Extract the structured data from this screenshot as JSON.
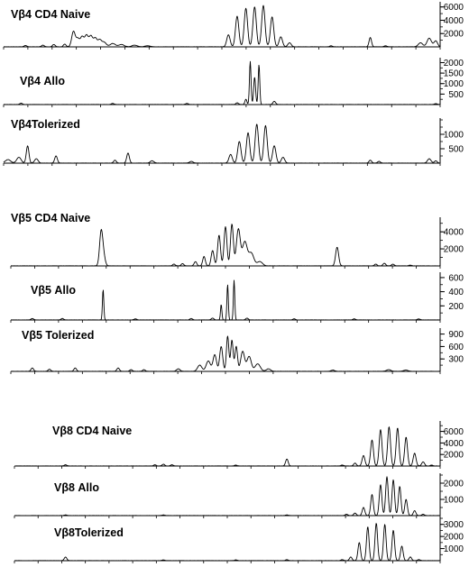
{
  "chart_data": [
    {
      "type": "line",
      "title": "Vβ4 CD4 Naive",
      "yticks": [
        2000,
        4000,
        6000
      ],
      "ylim": [
        0,
        6500
      ],
      "grid": false,
      "peaks": [
        {
          "x": 0.2,
          "y": 1600,
          "w": 0.004
        },
        {
          "x": 0.18,
          "y": 1500,
          "w": 0.004
        },
        {
          "x": 0.19,
          "y": 1700,
          "w": 0.004
        },
        {
          "x": 0.17,
          "y": 1200,
          "w": 0.004
        },
        {
          "x": 0.16,
          "y": 2300,
          "w": 0.004
        },
        {
          "x": 0.21,
          "y": 1300,
          "w": 0.004
        },
        {
          "x": 0.22,
          "y": 1000,
          "w": 0.004
        },
        {
          "x": 0.23,
          "y": 700,
          "w": 0.005
        },
        {
          "x": 0.25,
          "y": 500,
          "w": 0.006
        },
        {
          "x": 0.27,
          "y": 350,
          "w": 0.006
        },
        {
          "x": 0.3,
          "y": 250,
          "w": 0.006
        },
        {
          "x": 0.33,
          "y": 150,
          "w": 0.006
        },
        {
          "x": 0.05,
          "y": 200,
          "w": 0.003
        },
        {
          "x": 0.09,
          "y": 250,
          "w": 0.003
        },
        {
          "x": 0.115,
          "y": 350,
          "w": 0.003
        },
        {
          "x": 0.14,
          "y": 400,
          "w": 0.003
        },
        {
          "x": 0.515,
          "y": 1800,
          "w": 0.0038
        },
        {
          "x": 0.535,
          "y": 4600,
          "w": 0.0038
        },
        {
          "x": 0.555,
          "y": 5800,
          "w": 0.0038
        },
        {
          "x": 0.575,
          "y": 6000,
          "w": 0.0038
        },
        {
          "x": 0.595,
          "y": 6200,
          "w": 0.0038
        },
        {
          "x": 0.615,
          "y": 4500,
          "w": 0.0038
        },
        {
          "x": 0.635,
          "y": 1500,
          "w": 0.0038
        },
        {
          "x": 0.655,
          "y": 600,
          "w": 0.0038
        },
        {
          "x": 0.75,
          "y": 150,
          "w": 0.003
        },
        {
          "x": 0.84,
          "y": 1400,
          "w": 0.0028
        },
        {
          "x": 0.875,
          "y": 150,
          "w": 0.003
        },
        {
          "x": 0.955,
          "y": 600,
          "w": 0.005
        },
        {
          "x": 0.975,
          "y": 1300,
          "w": 0.005
        },
        {
          "x": 0.99,
          "y": 900,
          "w": 0.004
        }
      ]
    },
    {
      "type": "line",
      "title": "Vβ4 Allo",
      "yticks": [
        500,
        1000,
        1500,
        2000
      ],
      "ylim": [
        0,
        2150
      ],
      "grid": false,
      "peaks": [
        {
          "x": 0.04,
          "y": 60,
          "w": 0.003
        },
        {
          "x": 0.25,
          "y": 50,
          "w": 0.003
        },
        {
          "x": 0.42,
          "y": 50,
          "w": 0.003
        },
        {
          "x": 0.535,
          "y": 80,
          "w": 0.003
        },
        {
          "x": 0.555,
          "y": 250,
          "w": 0.0022
        },
        {
          "x": 0.575,
          "y": 1300,
          "w": 0.0022
        },
        {
          "x": 0.565,
          "y": 2050,
          "w": 0.0018
        },
        {
          "x": 0.585,
          "y": 1900,
          "w": 0.0018
        },
        {
          "x": 0.62,
          "y": 150,
          "w": 0.003
        },
        {
          "x": 0.99,
          "y": 40,
          "w": 0.003
        }
      ]
    },
    {
      "type": "line",
      "title": "Vβ4Tolerized",
      "yticks": [
        500,
        1000
      ],
      "ylim": [
        0,
        1500
      ],
      "grid": false,
      "peaks": [
        {
          "x": 0.01,
          "y": 120,
          "w": 0.006
        },
        {
          "x": 0.035,
          "y": 200,
          "w": 0.005
        },
        {
          "x": 0.055,
          "y": 600,
          "w": 0.003
        },
        {
          "x": 0.075,
          "y": 150,
          "w": 0.004
        },
        {
          "x": 0.12,
          "y": 250,
          "w": 0.003
        },
        {
          "x": 0.255,
          "y": 100,
          "w": 0.003
        },
        {
          "x": 0.285,
          "y": 350,
          "w": 0.003
        },
        {
          "x": 0.34,
          "y": 80,
          "w": 0.004
        },
        {
          "x": 0.43,
          "y": 60,
          "w": 0.004
        },
        {
          "x": 0.52,
          "y": 300,
          "w": 0.0038
        },
        {
          "x": 0.54,
          "y": 750,
          "w": 0.0038
        },
        {
          "x": 0.56,
          "y": 1050,
          "w": 0.0038
        },
        {
          "x": 0.58,
          "y": 1350,
          "w": 0.0038
        },
        {
          "x": 0.6,
          "y": 1300,
          "w": 0.0038
        },
        {
          "x": 0.62,
          "y": 600,
          "w": 0.0038
        },
        {
          "x": 0.64,
          "y": 200,
          "w": 0.0038
        },
        {
          "x": 0.84,
          "y": 100,
          "w": 0.003
        },
        {
          "x": 0.86,
          "y": 60,
          "w": 0.003
        },
        {
          "x": 0.975,
          "y": 150,
          "w": 0.004
        },
        {
          "x": 0.99,
          "y": 80,
          "w": 0.003
        }
      ]
    },
    {
      "type": "line",
      "title": "Vβ5 CD4 Naive",
      "yticks": [
        2000,
        4000
      ],
      "ylim": [
        0,
        5500
      ],
      "grid": false,
      "peaks": [
        {
          "x": 0.21,
          "y": 3500,
          "w": 0.0035
        },
        {
          "x": 0.215,
          "y": 1500,
          "w": 0.004
        },
        {
          "x": 0.38,
          "y": 200,
          "w": 0.003
        },
        {
          "x": 0.4,
          "y": 250,
          "w": 0.003
        },
        {
          "x": 0.43,
          "y": 500,
          "w": 0.003
        },
        {
          "x": 0.45,
          "y": 1100,
          "w": 0.003
        },
        {
          "x": 0.47,
          "y": 1800,
          "w": 0.0033
        },
        {
          "x": 0.485,
          "y": 3600,
          "w": 0.0033
        },
        {
          "x": 0.5,
          "y": 4600,
          "w": 0.0033
        },
        {
          "x": 0.515,
          "y": 4900,
          "w": 0.0033
        },
        {
          "x": 0.53,
          "y": 4300,
          "w": 0.0045
        },
        {
          "x": 0.545,
          "y": 2800,
          "w": 0.0055
        },
        {
          "x": 0.56,
          "y": 1500,
          "w": 0.006
        },
        {
          "x": 0.58,
          "y": 500,
          "w": 0.006
        },
        {
          "x": 0.76,
          "y": 2200,
          "w": 0.0035
        },
        {
          "x": 0.85,
          "y": 200,
          "w": 0.003
        },
        {
          "x": 0.87,
          "y": 300,
          "w": 0.003
        },
        {
          "x": 0.89,
          "y": 200,
          "w": 0.003
        },
        {
          "x": 0.93,
          "y": 80,
          "w": 0.003
        }
      ]
    },
    {
      "type": "line",
      "title": "Vβ5 Allo",
      "yticks": [
        200,
        400,
        600
      ],
      "ylim": [
        0,
        650
      ],
      "grid": false,
      "peaks": [
        {
          "x": 0.05,
          "y": 20,
          "w": 0.003
        },
        {
          "x": 0.12,
          "y": 20,
          "w": 0.003
        },
        {
          "x": 0.215,
          "y": 430,
          "w": 0.0016
        },
        {
          "x": 0.29,
          "y": 15,
          "w": 0.003
        },
        {
          "x": 0.42,
          "y": 20,
          "w": 0.003
        },
        {
          "x": 0.47,
          "y": 25,
          "w": 0.003
        },
        {
          "x": 0.49,
          "y": 220,
          "w": 0.0016
        },
        {
          "x": 0.505,
          "y": 500,
          "w": 0.0016
        },
        {
          "x": 0.52,
          "y": 560,
          "w": 0.0016
        },
        {
          "x": 0.55,
          "y": 25,
          "w": 0.003
        },
        {
          "x": 0.66,
          "y": 15,
          "w": 0.003
        },
        {
          "x": 0.8,
          "y": 15,
          "w": 0.003
        },
        {
          "x": 0.95,
          "y": 15,
          "w": 0.003
        }
      ]
    },
    {
      "type": "line",
      "title": "Vβ5 Tolerized",
      "yticks": [
        300,
        600,
        900
      ],
      "ylim": [
        0,
        1000
      ],
      "grid": false,
      "peaks": [
        {
          "x": 0.05,
          "y": 80,
          "w": 0.003
        },
        {
          "x": 0.09,
          "y": 50,
          "w": 0.003
        },
        {
          "x": 0.15,
          "y": 80,
          "w": 0.003
        },
        {
          "x": 0.25,
          "y": 80,
          "w": 0.003
        },
        {
          "x": 0.28,
          "y": 40,
          "w": 0.003
        },
        {
          "x": 0.31,
          "y": 40,
          "w": 0.003
        },
        {
          "x": 0.39,
          "y": 60,
          "w": 0.004
        },
        {
          "x": 0.44,
          "y": 150,
          "w": 0.005
        },
        {
          "x": 0.46,
          "y": 250,
          "w": 0.005
        },
        {
          "x": 0.475,
          "y": 400,
          "w": 0.004
        },
        {
          "x": 0.49,
          "y": 600,
          "w": 0.0035
        },
        {
          "x": 0.505,
          "y": 850,
          "w": 0.0028
        },
        {
          "x": 0.515,
          "y": 750,
          "w": 0.0028
        },
        {
          "x": 0.525,
          "y": 600,
          "w": 0.003
        },
        {
          "x": 0.54,
          "y": 480,
          "w": 0.0045
        },
        {
          "x": 0.555,
          "y": 360,
          "w": 0.005
        },
        {
          "x": 0.575,
          "y": 180,
          "w": 0.006
        },
        {
          "x": 0.6,
          "y": 60,
          "w": 0.005
        },
        {
          "x": 0.75,
          "y": 30,
          "w": 0.004
        },
        {
          "x": 0.88,
          "y": 40,
          "w": 0.005
        },
        {
          "x": 0.92,
          "y": 30,
          "w": 0.005
        }
      ]
    },
    {
      "type": "line",
      "title": "Vβ8 CD4 Naive",
      "yticks": [
        2000,
        4000,
        6000
      ],
      "ylim": [
        0,
        7500
      ],
      "grid": false,
      "peaks": [
        {
          "x": 0.12,
          "y": 200,
          "w": 0.003
        },
        {
          "x": 0.33,
          "y": 200,
          "w": 0.003
        },
        {
          "x": 0.35,
          "y": 300,
          "w": 0.003
        },
        {
          "x": 0.37,
          "y": 200,
          "w": 0.003
        },
        {
          "x": 0.52,
          "y": 150,
          "w": 0.003
        },
        {
          "x": 0.64,
          "y": 1200,
          "w": 0.003
        },
        {
          "x": 0.77,
          "y": 150,
          "w": 0.003
        },
        {
          "x": 0.8,
          "y": 500,
          "w": 0.003
        },
        {
          "x": 0.82,
          "y": 1800,
          "w": 0.0033
        },
        {
          "x": 0.84,
          "y": 4500,
          "w": 0.0033
        },
        {
          "x": 0.86,
          "y": 6300,
          "w": 0.0033
        },
        {
          "x": 0.88,
          "y": 6800,
          "w": 0.0033
        },
        {
          "x": 0.9,
          "y": 6600,
          "w": 0.0033
        },
        {
          "x": 0.92,
          "y": 5000,
          "w": 0.0033
        },
        {
          "x": 0.94,
          "y": 2200,
          "w": 0.0033
        },
        {
          "x": 0.96,
          "y": 700,
          "w": 0.0033
        },
        {
          "x": 0.98,
          "y": 150,
          "w": 0.003
        }
      ]
    },
    {
      "type": "line",
      "title": "Vβ8 Allo",
      "yticks": [
        1000,
        2000
      ],
      "ylim": [
        0,
        2500
      ],
      "grid": false,
      "peaks": [
        {
          "x": 0.12,
          "y": 40,
          "w": 0.003
        },
        {
          "x": 0.35,
          "y": 40,
          "w": 0.003
        },
        {
          "x": 0.64,
          "y": 40,
          "w": 0.003
        },
        {
          "x": 0.78,
          "y": 80,
          "w": 0.003
        },
        {
          "x": 0.8,
          "y": 150,
          "w": 0.003
        },
        {
          "x": 0.82,
          "y": 500,
          "w": 0.003
        },
        {
          "x": 0.84,
          "y": 1300,
          "w": 0.003
        },
        {
          "x": 0.86,
          "y": 1900,
          "w": 0.003
        },
        {
          "x": 0.875,
          "y": 2400,
          "w": 0.003
        },
        {
          "x": 0.89,
          "y": 2200,
          "w": 0.003
        },
        {
          "x": 0.905,
          "y": 1800,
          "w": 0.003
        },
        {
          "x": 0.92,
          "y": 1000,
          "w": 0.003
        },
        {
          "x": 0.94,
          "y": 300,
          "w": 0.003
        },
        {
          "x": 0.96,
          "y": 80,
          "w": 0.003
        }
      ]
    },
    {
      "type": "line",
      "title": "Vβ8Tolerized",
      "yticks": [
        1000,
        2000,
        3000
      ],
      "ylim": [
        0,
        3500
      ],
      "grid": false,
      "peaks": [
        {
          "x": 0.12,
          "y": 300,
          "w": 0.003
        },
        {
          "x": 0.35,
          "y": 60,
          "w": 0.003
        },
        {
          "x": 0.52,
          "y": 60,
          "w": 0.003
        },
        {
          "x": 0.64,
          "y": 80,
          "w": 0.003
        },
        {
          "x": 0.77,
          "y": 80,
          "w": 0.003
        },
        {
          "x": 0.79,
          "y": 300,
          "w": 0.003
        },
        {
          "x": 0.81,
          "y": 1500,
          "w": 0.003
        },
        {
          "x": 0.83,
          "y": 2800,
          "w": 0.003
        },
        {
          "x": 0.85,
          "y": 3100,
          "w": 0.003
        },
        {
          "x": 0.87,
          "y": 3000,
          "w": 0.003
        },
        {
          "x": 0.89,
          "y": 2500,
          "w": 0.003
        },
        {
          "x": 0.91,
          "y": 1200,
          "w": 0.003
        },
        {
          "x": 0.93,
          "y": 300,
          "w": 0.003
        },
        {
          "x": 0.95,
          "y": 80,
          "w": 0.003
        }
      ]
    }
  ]
}
